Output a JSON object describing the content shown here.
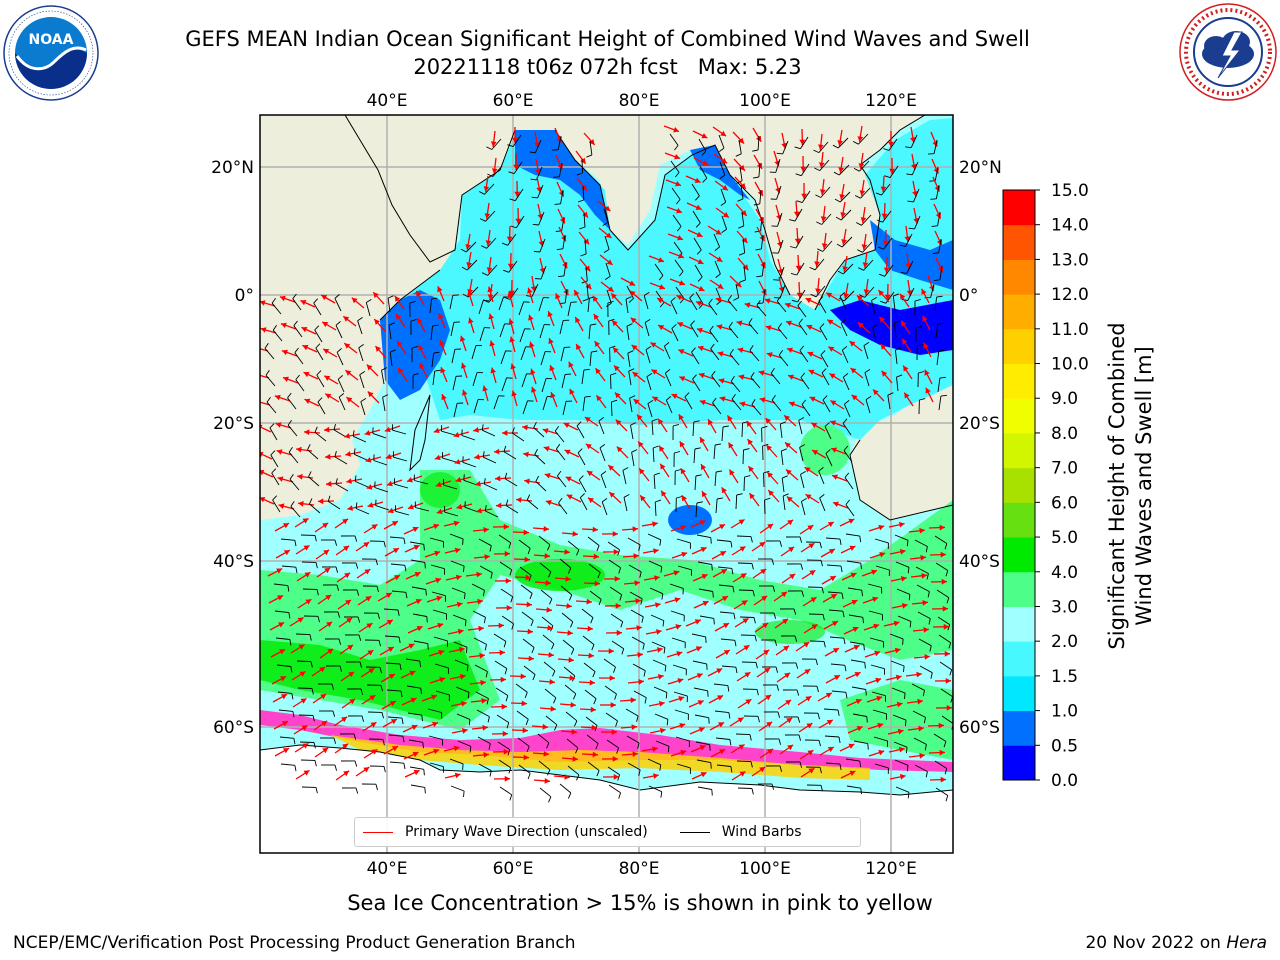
{
  "header": {
    "title_line1": "GEFS MEAN Indian Ocean Significant Height of Combined Wind Waves and Swell",
    "title_run": "20221118 t06z 072h fcst",
    "title_max": "Max: 5.23"
  },
  "logos": {
    "left": {
      "text": "NOAA",
      "ring_text": "NATIONAL OCEANIC AND ATMOSPHERIC ADMINISTRATION · U.S. DEPARTMENT OF COMMERCE"
    },
    "right": {
      "ring_text": "NATIONAL WEATHER SERVICE"
    }
  },
  "map": {
    "lon_range": [
      20,
      130
    ],
    "lat_range": [
      -70,
      27
    ],
    "top_lon_labels": [
      "40°E",
      "60°E",
      "80°E",
      "100°E",
      "120°E"
    ],
    "bottom_lon_labels": [
      "40°E",
      "60°E",
      "80°E",
      "100°E",
      "120°E"
    ],
    "lat_labels": [
      "20°N",
      "0°",
      "20°S",
      "40°S",
      "60°S"
    ],
    "land_color": "#eeeedd",
    "grid": true,
    "max_value": 5.23
  },
  "legend": {
    "wave_dir": "Primary Wave Direction (unscaled)",
    "wind_barbs": "Wind Barbs"
  },
  "colorbar": {
    "label_line1": "Significant Height of Combined",
    "label_line2": "Wind Waves and Swell [m]",
    "ticks": [
      "0.0",
      "0.5",
      "1.0",
      "1.5",
      "2.0",
      "3.0",
      "4.0",
      "5.0",
      "6.0",
      "7.0",
      "8.0",
      "9.0",
      "10.0",
      "11.0",
      "12.0",
      "13.0",
      "14.0",
      "15.0"
    ],
    "colors": [
      "#0000ff",
      "#0070ff",
      "#00e7ff",
      "#48f8ff",
      "#a0ffff",
      "#4dff88",
      "#00ea00",
      "#66e010",
      "#a8e000",
      "#d2f500",
      "#f0ff00",
      "#ffec00",
      "#ffd000",
      "#ffae00",
      "#ff8800",
      "#ff5500",
      "#ff0000"
    ]
  },
  "notes": {
    "sea_ice": "Sea Ice Concentration > 15% is shown in pink to yellow",
    "footer_left": "NCEP/EMC/Verification Post Processing Product Generation Branch",
    "footer_date": "20 Nov 2022 on ",
    "footer_host": "Hera"
  }
}
